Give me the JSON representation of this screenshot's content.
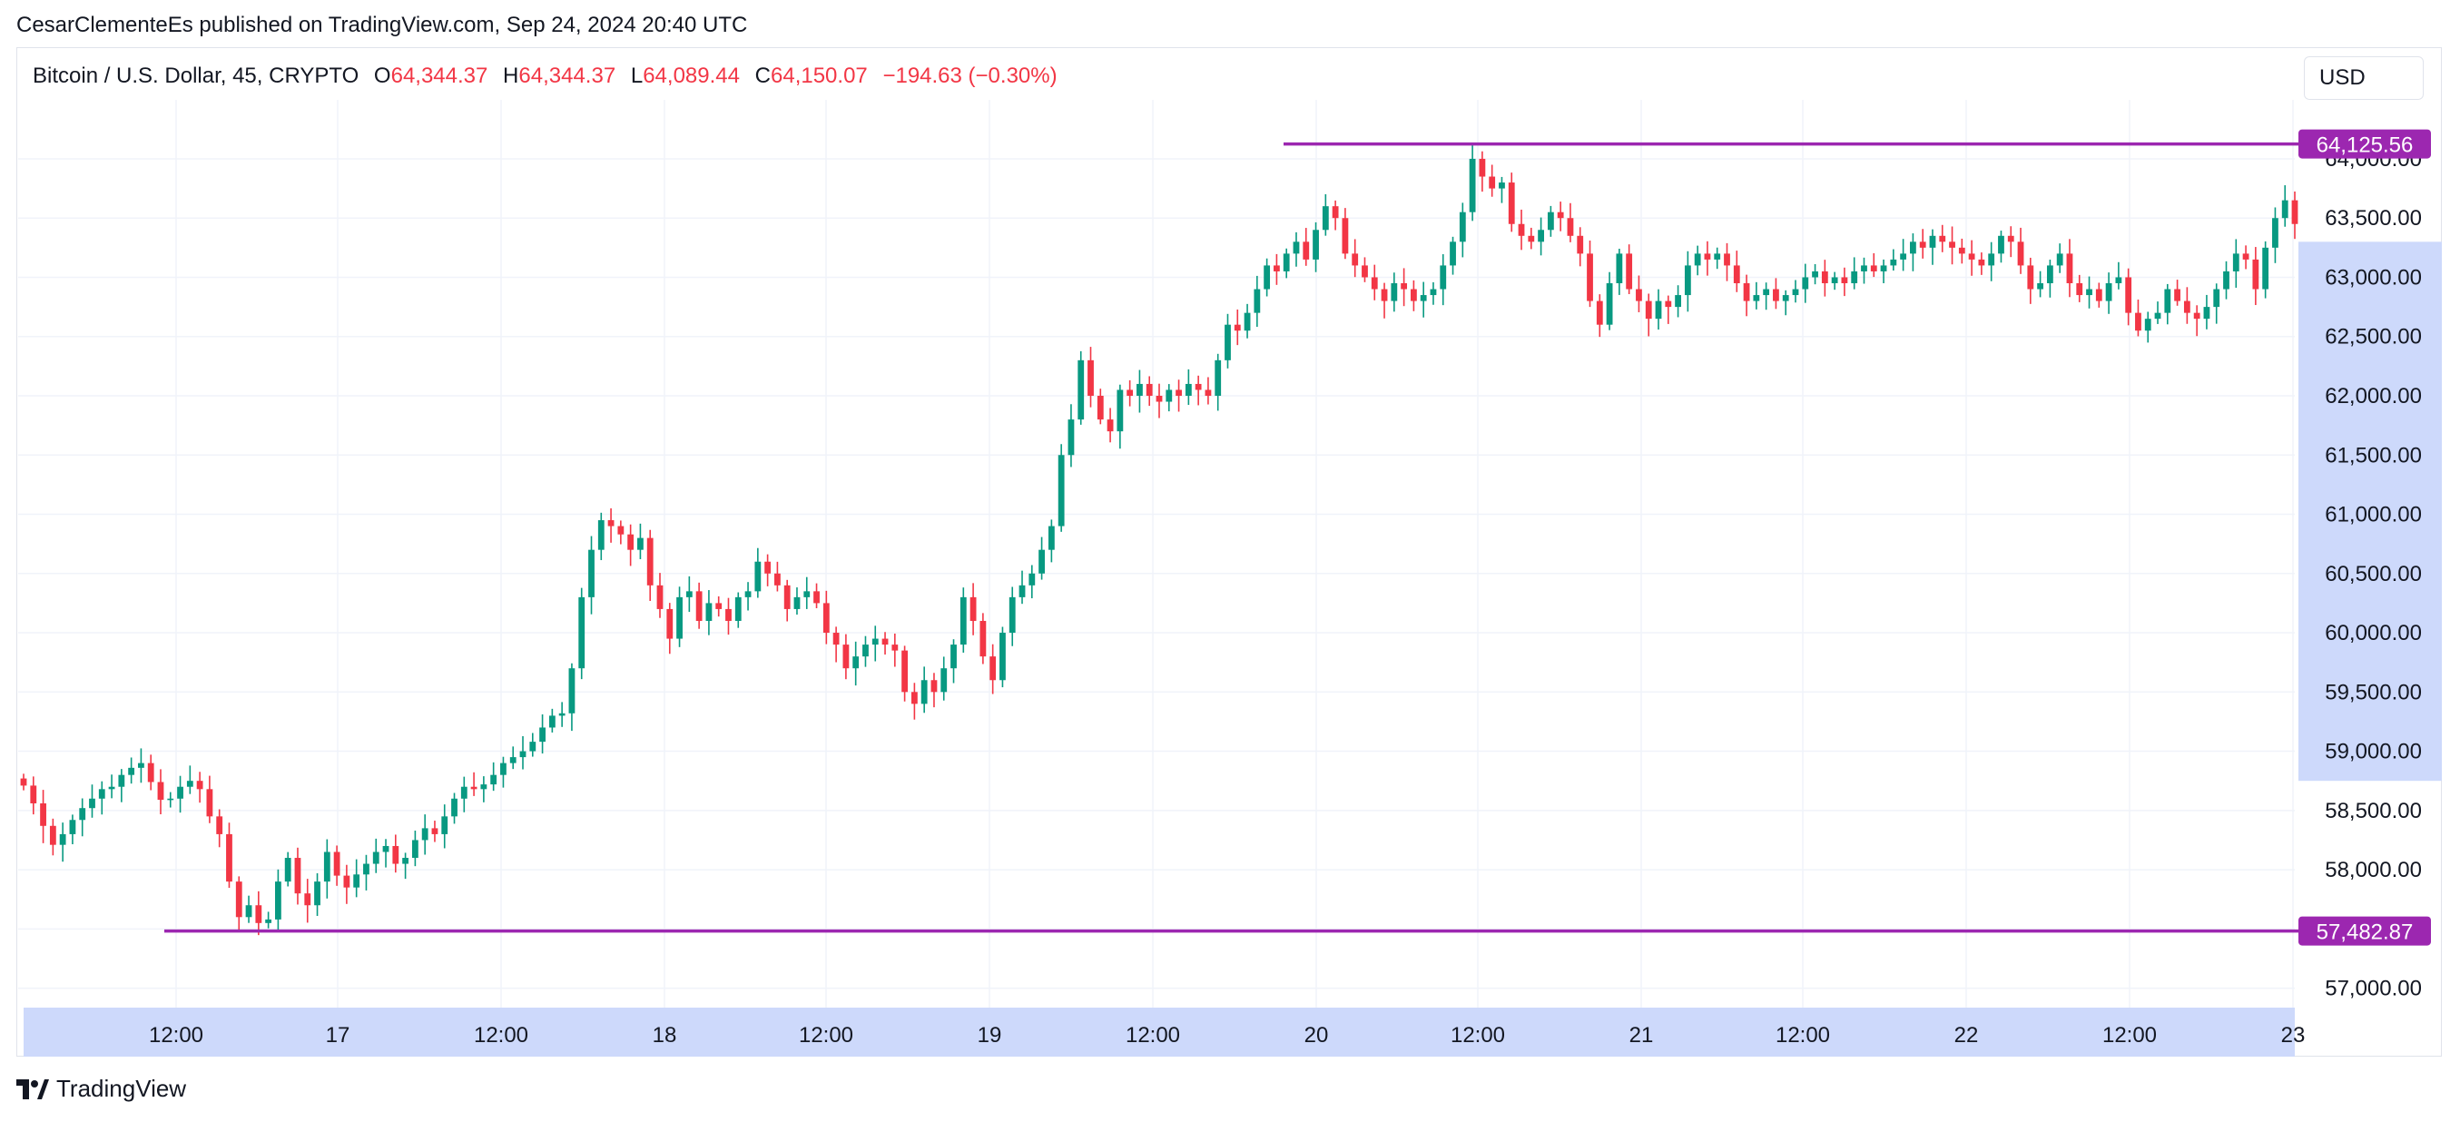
{
  "attribution": "CesarClementeEs published on TradingView.com, Sep 24, 2024 20:40 UTC",
  "legend": {
    "symbol": "Bitcoin / U.S. Dollar, 45, CRYPTO",
    "o_label": "O",
    "o_value": "64,344.37",
    "h_label": "H",
    "h_value": "64,344.37",
    "l_label": "L",
    "l_value": "64,089.44",
    "c_label": "C",
    "c_value": "64,150.07",
    "change": "−194.63 (−0.30%)"
  },
  "currency": "USD",
  "brand": "TradingView",
  "colors": {
    "up": "#089981",
    "down": "#f23645",
    "level": "#9c27b0",
    "axis_highlight": "#cdd9fb"
  },
  "chart_data": {
    "type": "candlestick",
    "title": "Bitcoin / U.S. Dollar, 45, CRYPTO",
    "ylim": [
      56500,
      64600
    ],
    "y_ticks": [
      "57,000.00",
      "57,500.00",
      "58,000.00",
      "58,500.00",
      "59,000.00",
      "59,500.00",
      "60,000.00",
      "60,500.00",
      "61,000.00",
      "61,500.00",
      "62,000.00",
      "62,500.00",
      "63,000.00",
      "63,500.00",
      "64,000.00"
    ],
    "x_ticks": [
      "12:00",
      "17",
      "12:00",
      "18",
      "12:00",
      "19",
      "12:00",
      "20",
      "12:00",
      "21",
      "12:00",
      "22",
      "12:00",
      "23"
    ],
    "grid": true,
    "horizontal_levels": [
      {
        "label": "64,125.56",
        "value": 64125.56,
        "x_start": "Sep 19 ~23:00"
      },
      {
        "label": "57,482.87",
        "value": 57482.87,
        "x_start": "Sep 16 ~11:30"
      }
    ],
    "axis_highlight_range": [
      58750,
      63300
    ],
    "close_series": [
      58710,
      58560,
      58370,
      58210,
      58300,
      58420,
      58520,
      58600,
      58680,
      58700,
      58800,
      58860,
      58900,
      58740,
      58590,
      58600,
      58700,
      58750,
      58680,
      58450,
      58300,
      57900,
      57600,
      57700,
      57550,
      57580,
      57900,
      58100,
      57800,
      57700,
      57900,
      58150,
      57950,
      57850,
      57960,
      58050,
      58150,
      58200,
      58050,
      58100,
      58250,
      58350,
      58300,
      58450,
      58600,
      58700,
      58680,
      58720,
      58800,
      58900,
      58950,
      59000,
      59080,
      59200,
      59300,
      59320,
      59700,
      60300,
      60700,
      60950,
      60900,
      60830,
      60700,
      60800,
      60400,
      60200,
      59950,
      60300,
      60350,
      60100,
      60250,
      60200,
      60100,
      60300,
      60350,
      60600,
      60500,
      60400,
      60200,
      60300,
      60350,
      60250,
      60000,
      59900,
      59700,
      59800,
      59900,
      59950,
      59900,
      59850,
      59500,
      59400,
      59600,
      59500,
      59700,
      59900,
      60300,
      60100,
      59800,
      59600,
      60000,
      60300,
      60400,
      60500,
      60700,
      60900,
      61500,
      61800,
      62300,
      62000,
      61800,
      61700,
      62050,
      62000,
      62100,
      62000,
      61950,
      62050,
      62000,
      62100,
      62050,
      62000,
      62300,
      62600,
      62550,
      62700,
      62900,
      63100,
      63050,
      63200,
      63300,
      63150,
      63400,
      63600,
      63500,
      63200,
      63100,
      63000,
      62900,
      62800,
      62950,
      62900,
      62800,
      62850,
      62900,
      63100,
      63300,
      63550,
      64000,
      63850,
      63750,
      63800,
      63450,
      63350,
      63300,
      63400,
      63550,
      63500,
      63350,
      63200,
      62800,
      62600,
      62950,
      63200,
      62900,
      62800,
      62650,
      62800,
      62750,
      62850,
      63100,
      63200,
      63150,
      63200,
      63100,
      62950,
      62800,
      62850,
      62900,
      62800,
      62850,
      62900,
      63000,
      63050,
      62950,
      63000,
      62950,
      63050,
      63100,
      63050,
      63100,
      63150,
      63200,
      63300,
      63250,
      63350,
      63300,
      63250,
      63200,
      63150,
      63100,
      63200,
      63350,
      63300,
      63100,
      62900,
      62950,
      63100,
      63200,
      62950,
      62850,
      62900,
      62800,
      62950,
      63000,
      62700,
      62550,
      62650,
      62700,
      62900,
      62800,
      62700,
      62650,
      62750,
      62900,
      63050,
      63200,
      63150,
      62900,
      63250,
      63500,
      63650,
      63450
    ]
  }
}
